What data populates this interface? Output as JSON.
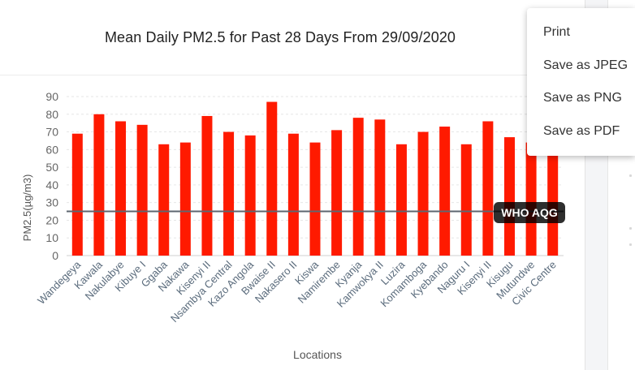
{
  "card": {
    "title": "Mean Daily PM2.5 for Past 28 Days From 29/09/2020"
  },
  "menu": {
    "items": [
      "Print",
      "Save as JPEG",
      "Save as PNG",
      "Save as PDF"
    ]
  },
  "colors": {
    "bar": "#ff1a00",
    "reference_line": "#5e6670",
    "grid": "#e6e6e6",
    "tick_label": "#666666",
    "category_label": "#5a6b7c"
  },
  "chart_data": {
    "type": "bar",
    "title": "Mean Daily PM2.5 for Past 28 Days From 29/09/2020",
    "xlabel": "Locations",
    "ylabel": "PM2.5(µg/m3)",
    "ylim": [
      0,
      90
    ],
    "yticks": [
      0,
      10,
      20,
      30,
      40,
      50,
      60,
      70,
      80,
      90
    ],
    "grid": true,
    "categories": [
      "Wandegeya",
      "Kawala",
      "Nakulabye",
      "Kibuye I",
      "Ggaba",
      "Nakawa",
      "Kisenyi II",
      "Nsambya Central",
      "Kazo Angola",
      "Bwaise II",
      "Nakasero II",
      "Kiswa",
      "Namirembe",
      "Kyanja",
      "Kamwokya II",
      "Luzira",
      "Komamboga",
      "Kyebando",
      "Naguru I",
      "Kisenyi II",
      "Kisugu",
      "Mutundwe",
      "Civic Centre"
    ],
    "values": [
      69,
      80,
      76,
      74,
      63,
      64,
      79,
      70,
      68,
      87,
      69,
      64,
      71,
      78,
      77,
      63,
      70,
      73,
      63,
      76,
      67,
      64,
      68
    ],
    "reference_line": {
      "label": "WHO AQG",
      "value": 25
    }
  }
}
